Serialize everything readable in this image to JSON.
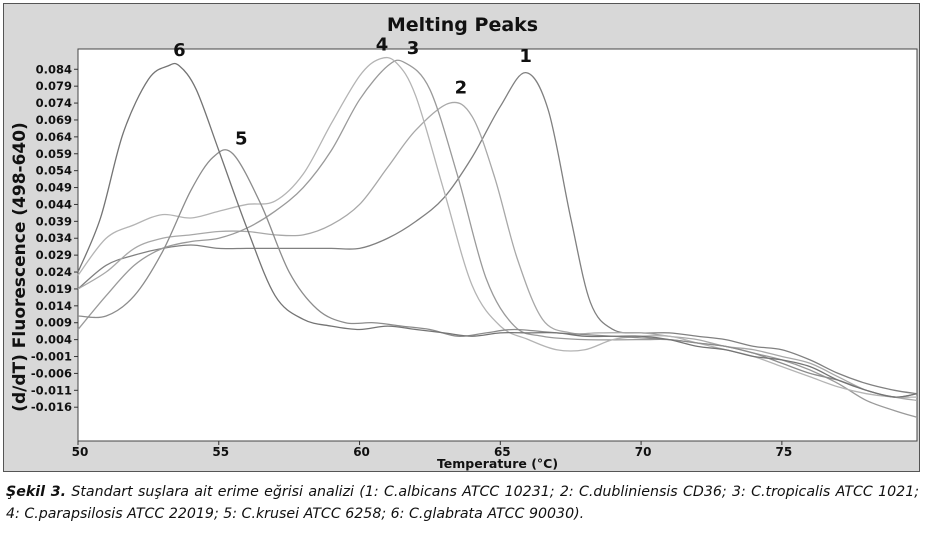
{
  "chart_data": {
    "type": "line",
    "title": "Melting Peaks",
    "xlabel": "Temperature (°C)",
    "ylabel": "(d/dT) Fluorescence (498-640)",
    "xlim": [
      50,
      79.8
    ],
    "ylim": [
      -0.026,
      0.09
    ],
    "xticks": [
      50,
      55,
      60,
      65,
      70,
      75
    ],
    "yticks": [
      0.084,
      0.079,
      0.074,
      0.069,
      0.064,
      0.059,
      0.054,
      0.049,
      0.044,
      0.039,
      0.034,
      0.029,
      0.024,
      0.019,
      0.014,
      0.009,
      0.004,
      -0.001,
      -0.006,
      -0.011,
      -0.016
    ],
    "ytick_labels": [
      "0.084",
      "0.079",
      "0.074",
      "0.069",
      "0.064",
      "0.059",
      "0.054",
      "0.049",
      "0.044",
      "0.039",
      "0.034",
      "0.029",
      "0.024",
      "0.019",
      "0.014",
      "0.009",
      "0.004",
      "-0.001",
      "-0.006",
      "-0.011",
      "-0.016"
    ],
    "grid": false,
    "colors": {
      "frame_bg": "#d8d8d8",
      "plot_bg": "#ffffff",
      "dark_curve": "#6f6f6f",
      "light_curve": "#b2b2b2"
    },
    "series": [
      {
        "name": "1",
        "color": "#808080",
        "x": [
          50,
          51,
          52,
          53,
          54,
          55,
          56,
          57,
          58,
          59,
          60,
          61,
          62,
          63,
          64,
          65,
          65.9,
          66.7,
          67.5,
          68.2,
          69,
          70,
          71,
          72,
          73,
          74,
          75,
          76,
          77,
          78,
          79,
          79.8
        ],
        "y": [
          0.019,
          0.026,
          0.029,
          0.031,
          0.032,
          0.031,
          0.031,
          0.031,
          0.031,
          0.031,
          0.031,
          0.034,
          0.039,
          0.046,
          0.058,
          0.073,
          0.083,
          0.072,
          0.04,
          0.015,
          0.007,
          0.006,
          0.006,
          0.005,
          0.004,
          0.002,
          0.001,
          -0.002,
          -0.006,
          -0.009,
          -0.011,
          -0.012
        ]
      },
      {
        "name": "2",
        "color": "#a8a8a8",
        "x": [
          50,
          51,
          52,
          53,
          54,
          55,
          56,
          57,
          58,
          59,
          60,
          61,
          62,
          63.2,
          64,
          64.8,
          65.6,
          66.5,
          67.5,
          68.5,
          70,
          71,
          72,
          73,
          74,
          75,
          76,
          77,
          78,
          79,
          79.8
        ],
        "y": [
          0.019,
          0.024,
          0.031,
          0.034,
          0.035,
          0.036,
          0.036,
          0.035,
          0.035,
          0.038,
          0.044,
          0.055,
          0.066,
          0.074,
          0.07,
          0.052,
          0.028,
          0.01,
          0.006,
          0.006,
          0.006,
          0.005,
          0.004,
          0.002,
          0.001,
          -0.001,
          -0.003,
          -0.007,
          -0.011,
          -0.013,
          -0.014
        ]
      },
      {
        "name": "3",
        "color": "#9a9a9a",
        "x": [
          50,
          51,
          52,
          53,
          54,
          55,
          56,
          57,
          58,
          59,
          60,
          61,
          61.6,
          62.5,
          63.5,
          64.5,
          65.5,
          66.5,
          68,
          70,
          71,
          72,
          73,
          74,
          75,
          76,
          77,
          78,
          79,
          79.8
        ],
        "y": [
          0.007,
          0.017,
          0.026,
          0.031,
          0.033,
          0.034,
          0.037,
          0.042,
          0.049,
          0.06,
          0.075,
          0.085,
          0.086,
          0.078,
          0.052,
          0.022,
          0.008,
          0.005,
          0.004,
          0.004,
          0.004,
          0.003,
          0.002,
          0.0,
          -0.002,
          -0.005,
          -0.009,
          -0.014,
          -0.017,
          -0.019
        ]
      },
      {
        "name": "4",
        "color": "#b4b4b4",
        "x": [
          50,
          51,
          52,
          53,
          54,
          55,
          56,
          57,
          58,
          59,
          60,
          60.7,
          61.3,
          62,
          63,
          64,
          65,
          66,
          67,
          68,
          69,
          70,
          71,
          72,
          73,
          74,
          75,
          76,
          77,
          78,
          79,
          79.8
        ],
        "y": [
          0.023,
          0.034,
          0.038,
          0.041,
          0.04,
          0.042,
          0.044,
          0.045,
          0.053,
          0.068,
          0.082,
          0.087,
          0.086,
          0.076,
          0.048,
          0.02,
          0.008,
          0.004,
          0.001,
          0.001,
          0.004,
          0.005,
          0.005,
          0.003,
          0.001,
          -0.001,
          -0.004,
          -0.007,
          -0.01,
          -0.012,
          -0.013,
          -0.013
        ]
      },
      {
        "name": "5",
        "color": "#8c8c8c",
        "x": [
          50,
          51,
          52,
          53,
          54,
          54.8,
          55.5,
          56.5,
          57.5,
          58.5,
          59.5,
          60.5,
          61.5,
          62.5,
          63.5,
          64.5,
          65.5,
          67,
          69,
          71,
          72,
          73,
          74,
          75,
          76,
          77,
          78,
          79,
          79.8
        ],
        "y": [
          0.011,
          0.011,
          0.017,
          0.03,
          0.048,
          0.058,
          0.059,
          0.044,
          0.024,
          0.013,
          0.009,
          0.009,
          0.008,
          0.007,
          0.005,
          0.006,
          0.007,
          0.006,
          0.005,
          0.004,
          0.003,
          0.002,
          0.0,
          -0.003,
          -0.006,
          -0.008,
          -0.011,
          -0.013,
          -0.012
        ]
      },
      {
        "name": "6",
        "color": "#747474",
        "x": [
          50,
          50.8,
          51.6,
          52.5,
          53.2,
          53.6,
          54.2,
          55,
          56,
          57,
          58,
          59,
          60,
          61,
          62,
          63,
          64,
          65,
          66,
          67,
          68,
          69,
          70,
          71,
          72,
          73,
          74,
          75,
          76,
          77,
          78,
          79,
          79.8
        ],
        "y": [
          0.024,
          0.04,
          0.065,
          0.081,
          0.085,
          0.085,
          0.078,
          0.06,
          0.037,
          0.017,
          0.01,
          0.008,
          0.007,
          0.008,
          0.007,
          0.006,
          0.005,
          0.006,
          0.006,
          0.006,
          0.005,
          0.005,
          0.005,
          0.004,
          0.002,
          0.001,
          -0.001,
          -0.002,
          -0.004,
          -0.008,
          -0.011,
          -0.013,
          -0.012
        ]
      }
    ],
    "annotations": [
      {
        "text": "6",
        "x": 53.6,
        "y": 0.0868
      },
      {
        "text": "5",
        "x": 55.8,
        "y": 0.0605
      },
      {
        "text": "4",
        "x": 60.8,
        "y": 0.0883
      },
      {
        "text": "3",
        "x": 61.9,
        "y": 0.0874
      },
      {
        "text": "2",
        "x": 63.6,
        "y": 0.0756
      },
      {
        "text": "1",
        "x": 65.9,
        "y": 0.0849
      }
    ]
  },
  "caption": {
    "label": "Şekil 3.",
    "text": " Standart suşlara ait erime eğrisi analizi (1: C.albicans ATCC 10231; 2: C.dubliniensis CD36; 3: C.tropicalis ATCC 1021; 4: C.parapsilosis ATCC 22019; 5: C.krusei ATCC 6258; 6: C.glabrata ATCC 90030)."
  }
}
